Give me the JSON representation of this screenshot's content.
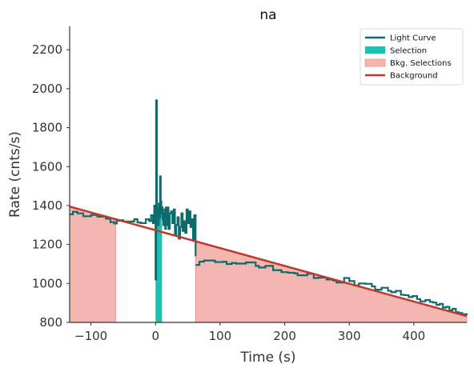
{
  "chart_data": {
    "type": "line",
    "title": "na",
    "xlabel": "Time (s)",
    "ylabel": "Rate (cnts/s)",
    "xlim": [
      -133,
      482
    ],
    "ylim": [
      800,
      2320
    ],
    "x_ticks": [
      -100,
      0,
      100,
      200,
      300,
      400
    ],
    "x_tick_labels": [
      "−100",
      "0",
      "100",
      "200",
      "300",
      "400"
    ],
    "y_ticks": [
      800,
      1000,
      1200,
      1400,
      1600,
      1800,
      2000,
      2200
    ],
    "y_tick_labels": [
      "800",
      "1000",
      "1200",
      "1400",
      "1600",
      "1800",
      "2000",
      "2200"
    ],
    "grid": false,
    "legend_position": "top-right",
    "legend": [
      {
        "label": "Light Curve",
        "kind": "line",
        "color": "#0d6b6b"
      },
      {
        "label": "Selection",
        "kind": "patch",
        "color": "#1fbfb2"
      },
      {
        "label": "Bkg. Selections",
        "kind": "patch",
        "color": "#f4b6b0"
      },
      {
        "label": "Background",
        "kind": "line",
        "color": "#c0392b"
      }
    ],
    "colors": {
      "light_curve": "#0d6b6b",
      "selection": "#1fbfb2",
      "bkg_selection": "#f4b6b0",
      "bkg_selection_edge": "#e8948c",
      "background": "#c0392b",
      "axis": "#333333"
    },
    "background_model": {
      "x": [
        -133,
        482
      ],
      "y": [
        1395,
        832
      ]
    },
    "selection_interval": [
      0,
      10
    ],
    "bkg_intervals": [
      [
        -133,
        -62
      ],
      [
        62,
        482
      ]
    ],
    "light_curve_coarse": {
      "x": [
        -133,
        -128,
        -121,
        -112,
        -100,
        -90,
        -77,
        -70,
        -64,
        -60,
        -55,
        -50,
        -42,
        -33,
        -28,
        -23,
        -15,
        -10,
        -5,
        2
      ],
      "y": [
        1355,
        1368,
        1360,
        1345,
        1352,
        1343,
        1333,
        1315,
        1308,
        1322,
        1325,
        1318,
        1318,
        1330,
        1313,
        1310,
        1330,
        1322,
        1325,
        1325
      ]
    },
    "light_curve_fine": {
      "x": [
        -10,
        -7,
        -4,
        -2,
        0,
        1,
        2,
        3,
        4,
        5,
        6,
        7,
        8,
        9,
        10,
        11,
        12,
        13,
        14,
        15,
        16,
        17,
        18,
        20,
        22,
        24,
        26,
        28,
        30,
        32,
        34,
        36,
        38,
        40,
        42,
        44,
        46,
        48,
        50,
        52,
        54,
        56,
        58,
        60,
        62
      ],
      "y": [
        1320,
        1350,
        1310,
        1400,
        1020,
        1940,
        1350,
        1380,
        1300,
        1410,
        1340,
        1550,
        1420,
        1360,
        1390,
        1330,
        1300,
        1360,
        1380,
        1280,
        1390,
        1300,
        1390,
        1280,
        1360,
        1370,
        1310,
        1380,
        1250,
        1300,
        1340,
        1230,
        1290,
        1360,
        1270,
        1320,
        1260,
        1380,
        1310,
        1370,
        1290,
        1330,
        1220,
        1350,
        1140
      ]
    },
    "light_curve_tail": {
      "x": [
        62,
        68,
        75,
        92,
        105,
        110,
        118,
        125,
        140,
        155,
        160,
        170,
        182,
        195,
        205,
        215,
        220,
        235,
        245,
        252,
        265,
        275,
        280,
        292,
        300,
        308,
        315,
        325,
        335,
        340,
        350,
        360,
        365,
        372,
        380,
        385,
        392,
        398,
        405,
        410,
        418,
        425,
        430,
        435,
        440,
        445,
        450,
        455,
        460,
        465,
        470,
        475,
        482
      ],
      "y": [
        1095,
        1112,
        1118,
        1110,
        1112,
        1100,
        1105,
        1102,
        1108,
        1090,
        1082,
        1090,
        1068,
        1058,
        1055,
        1052,
        1042,
        1050,
        1028,
        1030,
        1020,
        1015,
        1005,
        1028,
        1012,
        990,
        1000,
        998,
        985,
        968,
        978,
        962,
        955,
        962,
        942,
        940,
        930,
        935,
        920,
        908,
        915,
        905,
        902,
        890,
        895,
        876,
        880,
        862,
        870,
        852,
        848,
        842,
        838
      ]
    }
  }
}
